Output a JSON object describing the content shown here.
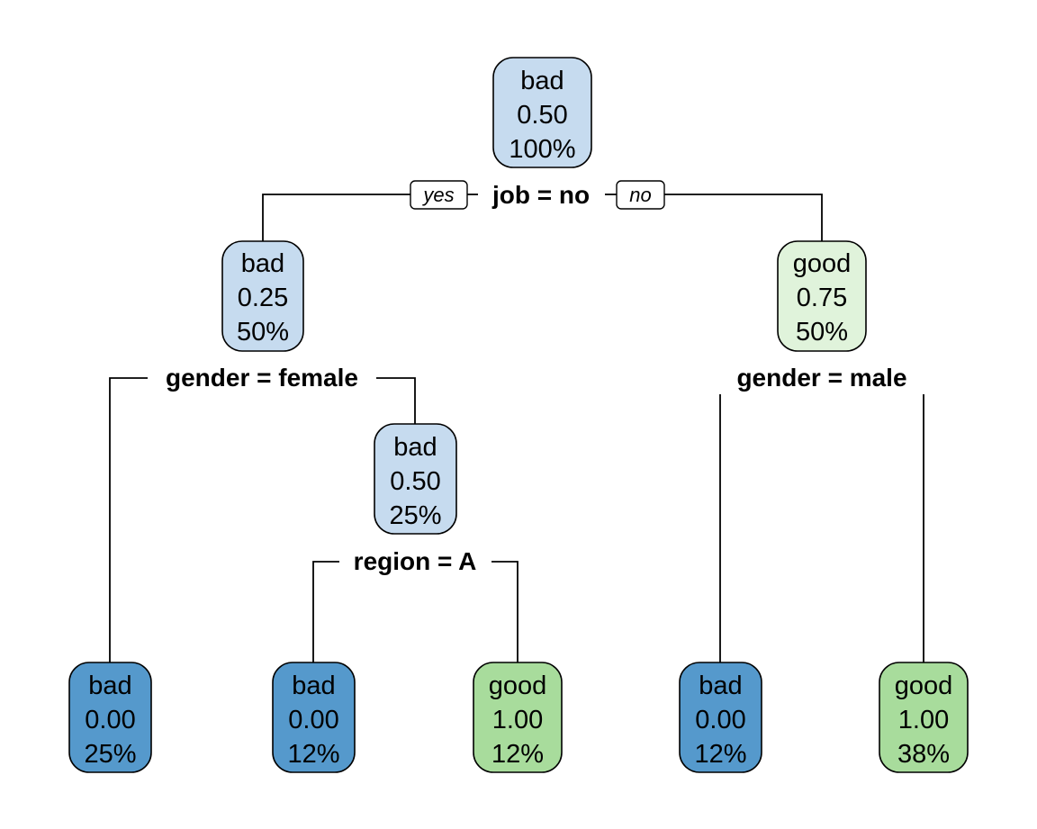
{
  "colors": {
    "bad_light": "#c6dbef",
    "bad_dark": "#5599cc",
    "good_light": "#e0f3db",
    "good_mid": "#a8dc9c"
  },
  "nodes": [
    {
      "id": "root",
      "class_label": "bad",
      "prob": "0.50",
      "pct": "100%",
      "color": "#c6dbef"
    },
    {
      "id": "n2",
      "class_label": "bad",
      "prob": "0.25",
      "pct": "50%",
      "color": "#c6dbef"
    },
    {
      "id": "n3",
      "class_label": "good",
      "prob": "0.75",
      "pct": "50%",
      "color": "#e0f3db"
    },
    {
      "id": "n5",
      "class_label": "bad",
      "prob": "0.50",
      "pct": "25%",
      "color": "#c6dbef"
    },
    {
      "id": "n4",
      "class_label": "bad",
      "prob": "0.00",
      "pct": "25%",
      "color": "#5599cc"
    },
    {
      "id": "n10",
      "class_label": "bad",
      "prob": "0.00",
      "pct": "12%",
      "color": "#5599cc"
    },
    {
      "id": "n11",
      "class_label": "good",
      "prob": "1.00",
      "pct": "12%",
      "color": "#a8dc9c"
    },
    {
      "id": "n6",
      "class_label": "bad",
      "prob": "0.00",
      "pct": "12%",
      "color": "#5599cc"
    },
    {
      "id": "n7",
      "class_label": "good",
      "prob": "1.00",
      "pct": "38%",
      "color": "#a8dc9c"
    }
  ],
  "splits": [
    {
      "id": "s_root",
      "label": "job =  no"
    },
    {
      "id": "s_n2",
      "label": "gender = female"
    },
    {
      "id": "s_n3",
      "label": "gender =  male"
    },
    {
      "id": "s_n5",
      "label": "region = A"
    }
  ],
  "branch_labels": {
    "yes": "yes",
    "no": "no"
  }
}
